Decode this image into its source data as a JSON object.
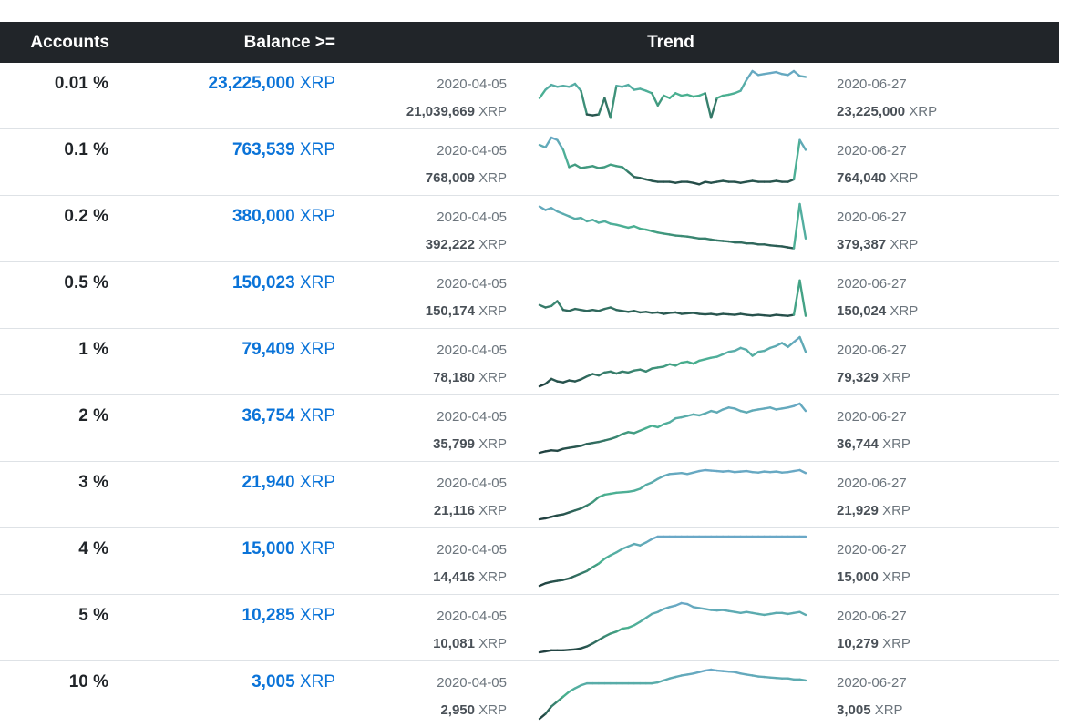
{
  "header": {
    "accounts": "Accounts",
    "balance": "Balance >=",
    "trend": "Trend"
  },
  "unit": "XRP",
  "colors": {
    "low": "#1f3b3c",
    "mid": "#49b08f",
    "high": "#6aa8c7"
  },
  "rows": [
    {
      "pct": "0.01 %",
      "balance": "23,225,000",
      "start_date": "2020-04-05",
      "start_value": "21,039,669",
      "end_date": "2020-06-27",
      "end_value": "23,225,000",
      "trend": [
        0.45,
        0.62,
        0.72,
        0.68,
        0.7,
        0.68,
        0.74,
        0.6,
        0.12,
        0.1,
        0.12,
        0.45,
        0.05,
        0.7,
        0.68,
        0.72,
        0.62,
        0.64,
        0.6,
        0.55,
        0.3,
        0.5,
        0.45,
        0.55,
        0.5,
        0.52,
        0.48,
        0.5,
        0.55,
        0.05,
        0.45,
        0.5,
        0.52,
        0.55,
        0.6,
        0.82,
        1.0,
        0.92,
        0.94,
        0.96,
        0.98,
        0.94,
        0.92,
        1.0,
        0.9,
        0.88
      ]
    },
    {
      "pct": "0.1 %",
      "balance": "763,539",
      "start_date": "2020-04-05",
      "start_value": "768,009",
      "end_date": "2020-06-27",
      "end_value": "764,040",
      "trend": [
        0.85,
        0.8,
        1.0,
        0.95,
        0.75,
        0.4,
        0.45,
        0.38,
        0.4,
        0.42,
        0.38,
        0.4,
        0.45,
        0.42,
        0.4,
        0.3,
        0.2,
        0.18,
        0.15,
        0.12,
        0.1,
        0.1,
        0.1,
        0.08,
        0.1,
        0.1,
        0.08,
        0.05,
        0.1,
        0.08,
        0.1,
        0.12,
        0.1,
        0.1,
        0.08,
        0.1,
        0.12,
        0.1,
        0.1,
        0.1,
        0.12,
        0.1,
        0.1,
        0.15,
        0.95,
        0.75
      ]
    },
    {
      "pct": "0.2 %",
      "balance": "380,000",
      "start_date": "2020-04-05",
      "start_value": "392,222",
      "end_date": "2020-06-27",
      "end_value": "379,387",
      "trend": [
        0.95,
        0.88,
        0.92,
        0.85,
        0.8,
        0.75,
        0.7,
        0.72,
        0.65,
        0.68,
        0.62,
        0.65,
        0.6,
        0.58,
        0.55,
        0.52,
        0.55,
        0.5,
        0.48,
        0.45,
        0.42,
        0.4,
        0.38,
        0.36,
        0.35,
        0.34,
        0.32,
        0.3,
        0.3,
        0.28,
        0.26,
        0.25,
        0.24,
        0.22,
        0.22,
        0.2,
        0.2,
        0.18,
        0.18,
        0.16,
        0.15,
        0.14,
        0.12,
        0.1,
        1.0,
        0.3
      ]
    },
    {
      "pct": "0.5 %",
      "balance": "150,023",
      "start_date": "2020-04-05",
      "start_value": "150,174",
      "end_date": "2020-06-27",
      "end_value": "150,024",
      "trend": [
        0.3,
        0.25,
        0.28,
        0.38,
        0.2,
        0.18,
        0.22,
        0.2,
        0.18,
        0.2,
        0.18,
        0.22,
        0.25,
        0.2,
        0.18,
        0.16,
        0.18,
        0.15,
        0.16,
        0.14,
        0.15,
        0.12,
        0.14,
        0.15,
        0.12,
        0.13,
        0.14,
        0.12,
        0.11,
        0.12,
        0.1,
        0.12,
        0.11,
        0.1,
        0.12,
        0.1,
        0.09,
        0.1,
        0.09,
        0.08,
        0.1,
        0.09,
        0.08,
        0.1,
        0.8,
        0.08
      ]
    },
    {
      "pct": "1 %",
      "balance": "79,409",
      "start_date": "2020-04-05",
      "start_value": "78,180",
      "end_date": "2020-06-27",
      "end_value": "79,329",
      "trend": [
        0.0,
        0.05,
        0.15,
        0.1,
        0.08,
        0.12,
        0.1,
        0.14,
        0.2,
        0.25,
        0.22,
        0.28,
        0.3,
        0.26,
        0.3,
        0.28,
        0.32,
        0.34,
        0.3,
        0.36,
        0.38,
        0.4,
        0.45,
        0.42,
        0.48,
        0.5,
        0.46,
        0.52,
        0.55,
        0.58,
        0.6,
        0.65,
        0.7,
        0.72,
        0.78,
        0.74,
        0.62,
        0.7,
        0.72,
        0.78,
        0.82,
        0.88,
        0.8,
        0.9,
        1.0,
        0.7
      ]
    },
    {
      "pct": "2 %",
      "balance": "36,754",
      "start_date": "2020-04-05",
      "start_value": "35,799",
      "end_date": "2020-06-27",
      "end_value": "36,744",
      "trend": [
        0.0,
        0.03,
        0.05,
        0.04,
        0.08,
        0.1,
        0.12,
        0.14,
        0.18,
        0.2,
        0.22,
        0.25,
        0.28,
        0.32,
        0.38,
        0.42,
        0.4,
        0.45,
        0.5,
        0.55,
        0.52,
        0.58,
        0.62,
        0.7,
        0.72,
        0.75,
        0.78,
        0.76,
        0.8,
        0.85,
        0.82,
        0.88,
        0.92,
        0.9,
        0.85,
        0.82,
        0.86,
        0.88,
        0.9,
        0.92,
        0.88,
        0.9,
        0.92,
        0.95,
        1.0,
        0.85
      ]
    },
    {
      "pct": "3 %",
      "balance": "21,940",
      "start_date": "2020-04-05",
      "start_value": "21,116",
      "end_date": "2020-06-27",
      "end_value": "21,929",
      "trend": [
        0.0,
        0.02,
        0.05,
        0.08,
        0.1,
        0.14,
        0.18,
        0.22,
        0.28,
        0.35,
        0.45,
        0.5,
        0.52,
        0.54,
        0.55,
        0.56,
        0.58,
        0.62,
        0.7,
        0.75,
        0.82,
        0.88,
        0.92,
        0.93,
        0.94,
        0.92,
        0.95,
        0.98,
        1.0,
        0.99,
        0.98,
        0.97,
        0.98,
        0.96,
        0.97,
        0.98,
        0.96,
        0.95,
        0.97,
        0.96,
        0.97,
        0.95,
        0.96,
        0.98,
        1.0,
        0.94
      ]
    },
    {
      "pct": "4 %",
      "balance": "15,000",
      "start_date": "2020-04-05",
      "start_value": "14,416",
      "end_date": "2020-06-27",
      "end_value": "15,000",
      "trend": [
        0.0,
        0.05,
        0.08,
        0.1,
        0.12,
        0.15,
        0.2,
        0.25,
        0.3,
        0.38,
        0.45,
        0.55,
        0.62,
        0.68,
        0.75,
        0.8,
        0.85,
        0.82,
        0.88,
        0.95,
        1.0,
        1.0,
        1.0,
        1.0,
        1.0,
        1.0,
        1.0,
        1.0,
        1.0,
        1.0,
        1.0,
        1.0,
        1.0,
        1.0,
        1.0,
        1.0,
        1.0,
        1.0,
        1.0,
        1.0,
        1.0,
        1.0,
        1.0,
        1.0,
        1.0,
        1.0
      ]
    },
    {
      "pct": "5 %",
      "balance": "10,285",
      "start_date": "2020-04-05",
      "start_value": "10,081",
      "end_date": "2020-06-27",
      "end_value": "10,279",
      "trend": [
        0.0,
        0.02,
        0.04,
        0.04,
        0.04,
        0.05,
        0.06,
        0.08,
        0.12,
        0.18,
        0.25,
        0.32,
        0.38,
        0.42,
        0.48,
        0.5,
        0.55,
        0.62,
        0.7,
        0.78,
        0.82,
        0.88,
        0.92,
        0.95,
        1.0,
        0.98,
        0.92,
        0.9,
        0.88,
        0.86,
        0.85,
        0.86,
        0.84,
        0.82,
        0.8,
        0.82,
        0.8,
        0.78,
        0.76,
        0.78,
        0.8,
        0.8,
        0.78,
        0.8,
        0.82,
        0.76
      ]
    },
    {
      "pct": "10 %",
      "balance": "3,005",
      "start_date": "2020-04-05",
      "start_value": "2,950",
      "end_date": "2020-06-27",
      "end_value": "3,005",
      "trend": [
        0.0,
        0.1,
        0.25,
        0.35,
        0.45,
        0.55,
        0.62,
        0.68,
        0.72,
        0.72,
        0.72,
        0.72,
        0.72,
        0.72,
        0.72,
        0.72,
        0.72,
        0.72,
        0.72,
        0.72,
        0.74,
        0.78,
        0.82,
        0.85,
        0.88,
        0.9,
        0.92,
        0.95,
        0.98,
        1.0,
        0.98,
        0.97,
        0.96,
        0.95,
        0.92,
        0.9,
        0.88,
        0.86,
        0.85,
        0.84,
        0.83,
        0.82,
        0.82,
        0.8,
        0.8,
        0.78
      ]
    }
  ]
}
